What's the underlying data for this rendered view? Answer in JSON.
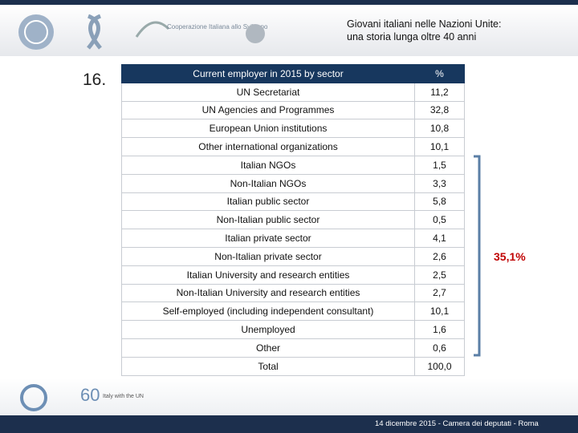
{
  "header": {
    "title_line1": "Giovani italiani nelle Nazioni Unite:",
    "title_line2": "una storia lunga oltre 40 anni",
    "logo_text": "Cooperazione Italiana allo Sviluppo"
  },
  "slide_number": "16.",
  "table": {
    "columns": [
      "Current employer in 2015 by sector",
      "%"
    ],
    "rows": [
      [
        "UN Secretariat",
        "11,2"
      ],
      [
        "UN Agencies and Programmes",
        "32,8"
      ],
      [
        "European Union institutions",
        "10,8"
      ],
      [
        "Other international organizations",
        "10,1"
      ],
      [
        "Italian NGOs",
        "1,5"
      ],
      [
        "Non-Italian NGOs",
        "3,3"
      ],
      [
        "Italian public sector",
        "5,8"
      ],
      [
        "Non-Italian public sector",
        "0,5"
      ],
      [
        "Italian private sector",
        "4,1"
      ],
      [
        "Non-Italian private sector",
        "2,6"
      ],
      [
        "Italian University and research entities",
        "2,5"
      ],
      [
        "Non-Italian University and research entities",
        "2,7"
      ],
      [
        "Self-employed (including independent consultant)",
        "10,1"
      ],
      [
        "Unemployed",
        "1,6"
      ],
      [
        "Other",
        "0,6"
      ],
      [
        "Total",
        "100,0"
      ]
    ]
  },
  "annotation": "35,1%",
  "footer": {
    "logo_60": "60",
    "logo_60_text": "Italy with the UN",
    "text": "14 dicembre 2015 - Camera dei deputati - Roma"
  }
}
